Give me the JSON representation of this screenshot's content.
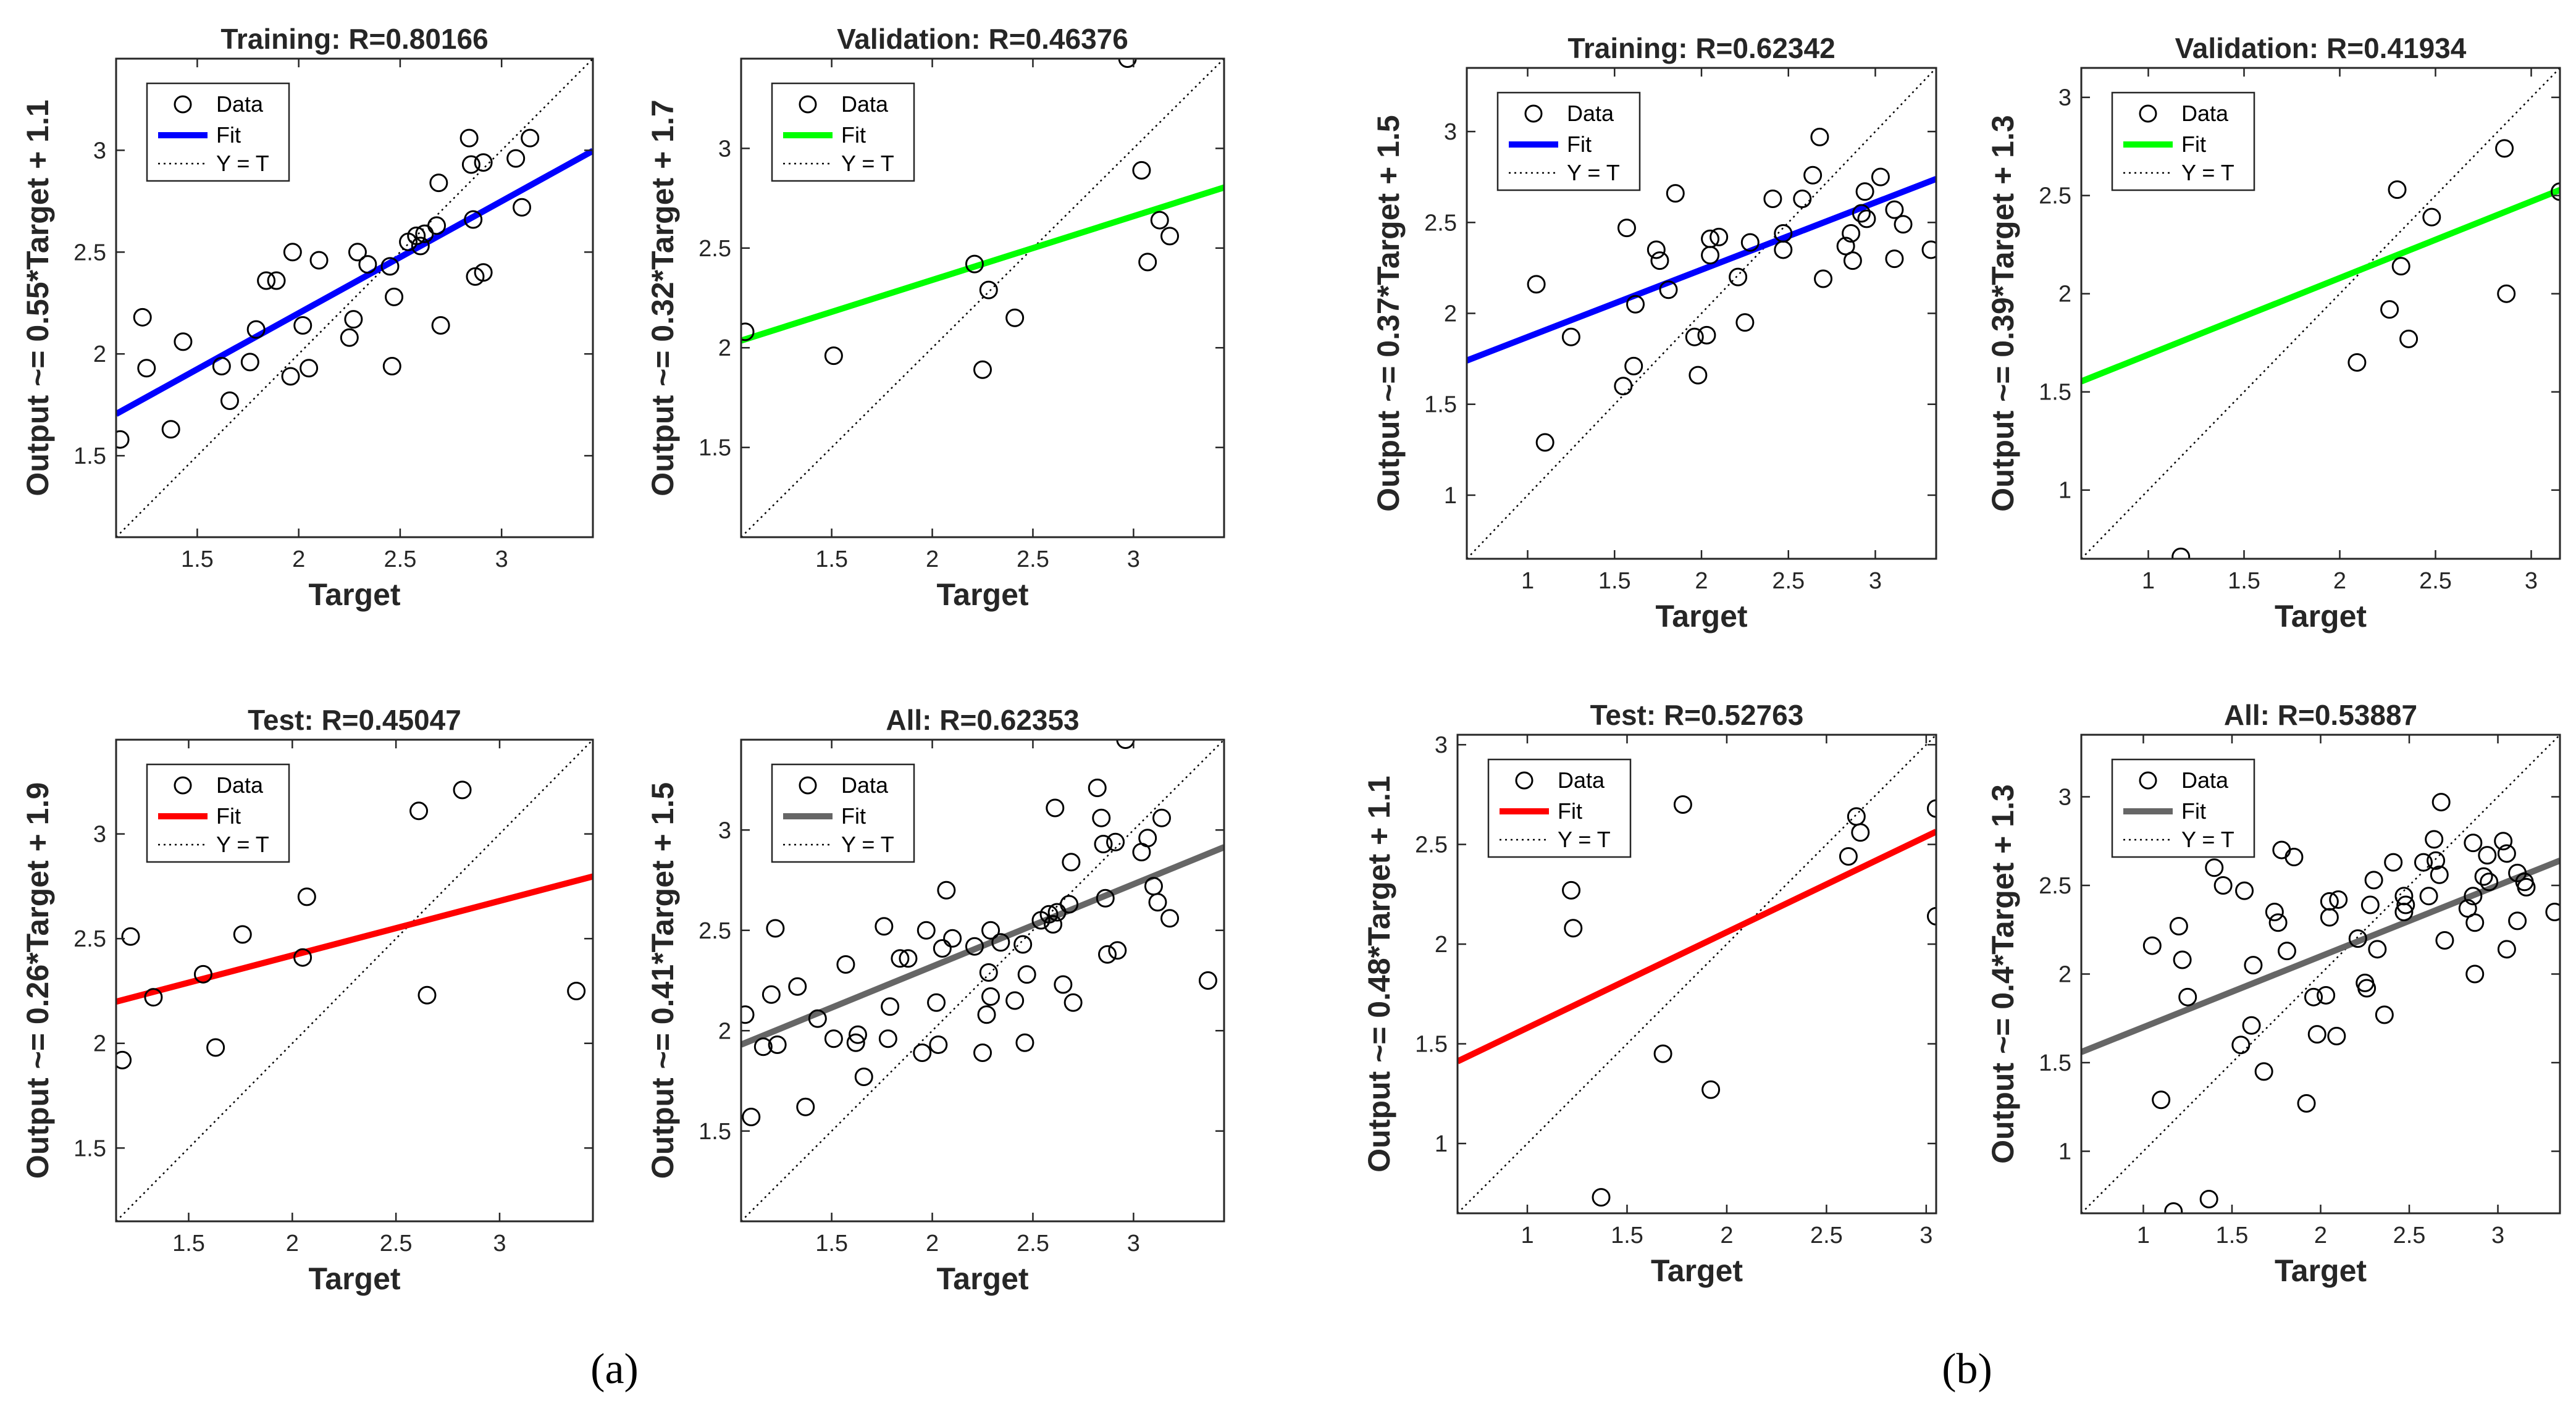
{
  "legend_labels": {
    "data": "Data",
    "fit": "Fit",
    "yt": "Y = T"
  },
  "colors": {
    "training": "#0000ff",
    "validation": "#00ff00",
    "test": "#ff0000",
    "all": "#666666"
  },
  "figure_labels": {
    "a": "(a)",
    "b": "(b)"
  },
  "chart_data": [
    {
      "id": "a-training",
      "type": "scatter",
      "group": "a",
      "title": "Training: R=0.80166",
      "xlabel": "Target",
      "ylabel": "Output ~= 0.55*Target + 1.1",
      "xlim": [
        1.1,
        3.45
      ],
      "ylim": [
        1.1,
        3.45
      ],
      "xticks": [
        1.5,
        2,
        2.5,
        3
      ],
      "yticks": [
        1.5,
        2,
        2.5,
        3
      ],
      "fit": {
        "slope": 0.55,
        "intercept": 1.1,
        "color": "training"
      },
      "points": [
        [
          1.12,
          1.58
        ],
        [
          1.23,
          2.18
        ],
        [
          1.25,
          1.93
        ],
        [
          1.37,
          1.63
        ],
        [
          1.43,
          2.06
        ],
        [
          1.62,
          1.94
        ],
        [
          1.66,
          1.77
        ],
        [
          1.76,
          1.96
        ],
        [
          1.79,
          2.12
        ],
        [
          1.84,
          2.36
        ],
        [
          1.89,
          2.36
        ],
        [
          1.96,
          1.89
        ],
        [
          1.97,
          2.5
        ],
        [
          2.02,
          2.14
        ],
        [
          2.05,
          1.93
        ],
        [
          2.1,
          2.46
        ],
        [
          2.25,
          2.08
        ],
        [
          2.27,
          2.17
        ],
        [
          2.29,
          2.5
        ],
        [
          2.34,
          2.44
        ],
        [
          2.45,
          2.43
        ],
        [
          2.46,
          1.94
        ],
        [
          2.47,
          2.28
        ],
        [
          2.54,
          2.55
        ],
        [
          2.58,
          2.58
        ],
        [
          2.6,
          2.53
        ],
        [
          2.62,
          2.59
        ],
        [
          2.68,
          2.63
        ],
        [
          2.69,
          2.84
        ],
        [
          2.7,
          2.14
        ],
        [
          2.84,
          3.06
        ],
        [
          2.85,
          2.93
        ],
        [
          2.86,
          2.66
        ],
        [
          2.87,
          2.38
        ],
        [
          2.91,
          2.94
        ],
        [
          2.91,
          2.4
        ],
        [
          3.07,
          2.96
        ],
        [
          3.1,
          2.72
        ],
        [
          3.14,
          3.06
        ]
      ]
    },
    {
      "id": "a-validation",
      "type": "scatter",
      "group": "a",
      "title": "Validation: R=0.46376",
      "xlabel": "Target",
      "ylabel": "Output ~= 0.32*Target + 1.7",
      "xlim": [
        1.05,
        3.45
      ],
      "ylim": [
        1.05,
        3.45
      ],
      "xticks": [
        1.5,
        2,
        2.5,
        3
      ],
      "yticks": [
        1.5,
        2,
        2.5,
        3
      ],
      "fit": {
        "slope": 0.32,
        "intercept": 1.7,
        "color": "validation"
      },
      "points": [
        [
          1.07,
          2.08
        ],
        [
          1.51,
          1.96
        ],
        [
          2.21,
          2.42
        ],
        [
          2.25,
          1.89
        ],
        [
          2.28,
          2.29
        ],
        [
          2.41,
          2.15
        ],
        [
          2.97,
          3.45
        ],
        [
          3.04,
          2.89
        ],
        [
          3.07,
          2.43
        ],
        [
          3.13,
          2.64
        ],
        [
          3.18,
          2.56
        ]
      ]
    },
    {
      "id": "a-test",
      "type": "scatter",
      "group": "a",
      "title": "Test: R=0.45047",
      "xlabel": "Target",
      "ylabel": "Output ~= 0.26*Target + 1.9",
      "xlim": [
        1.15,
        3.45
      ],
      "ylim": [
        1.15,
        3.45
      ],
      "xticks": [
        1.5,
        2,
        2.5,
        3
      ],
      "yticks": [
        1.5,
        2,
        2.5,
        3
      ],
      "fit": {
        "slope": 0.26,
        "intercept": 1.9,
        "color": "test"
      },
      "points": [
        [
          1.18,
          1.92
        ],
        [
          1.22,
          2.51
        ],
        [
          1.33,
          2.22
        ],
        [
          1.57,
          2.33
        ],
        [
          1.63,
          1.98
        ],
        [
          1.76,
          2.52
        ],
        [
          2.05,
          2.41
        ],
        [
          2.07,
          2.7
        ],
        [
          2.61,
          3.11
        ],
        [
          2.65,
          2.23
        ],
        [
          2.82,
          3.21
        ],
        [
          3.37,
          2.25
        ]
      ]
    },
    {
      "id": "a-all",
      "type": "scatter",
      "group": "a",
      "title": "All: R=0.62353",
      "xlabel": "Target",
      "ylabel": "Output ~= 0.41*Target + 1.5",
      "xlim": [
        1.05,
        3.45
      ],
      "ylim": [
        1.05,
        3.45
      ],
      "xticks": [
        1.5,
        2,
        2.5,
        3
      ],
      "yticks": [
        1.5,
        2,
        2.5,
        3
      ],
      "fit": {
        "slope": 0.41,
        "intercept": 1.5,
        "color": "all"
      },
      "points": [
        [
          1.07,
          2.08
        ],
        [
          1.1,
          1.57
        ],
        [
          1.16,
          1.92
        ],
        [
          1.2,
          2.18
        ],
        [
          1.22,
          2.51
        ],
        [
          1.23,
          1.93
        ],
        [
          1.33,
          2.22
        ],
        [
          1.37,
          1.62
        ],
        [
          1.43,
          2.06
        ],
        [
          1.51,
          1.96
        ],
        [
          1.57,
          2.33
        ],
        [
          1.62,
          1.94
        ],
        [
          1.63,
          1.98
        ],
        [
          1.66,
          1.77
        ],
        [
          1.76,
          2.52
        ],
        [
          1.78,
          1.96
        ],
        [
          1.79,
          2.12
        ],
        [
          1.84,
          2.36
        ],
        [
          1.88,
          2.36
        ],
        [
          1.95,
          1.89
        ],
        [
          1.97,
          2.5
        ],
        [
          2.02,
          2.14
        ],
        [
          2.03,
          1.93
        ],
        [
          2.05,
          2.41
        ],
        [
          2.07,
          2.7
        ],
        [
          2.1,
          2.46
        ],
        [
          2.21,
          2.42
        ],
        [
          2.25,
          1.89
        ],
        [
          2.27,
          2.08
        ],
        [
          2.28,
          2.29
        ],
        [
          2.29,
          2.17
        ],
        [
          2.29,
          2.5
        ],
        [
          2.34,
          2.44
        ],
        [
          2.41,
          2.15
        ],
        [
          2.45,
          2.43
        ],
        [
          2.46,
          1.94
        ],
        [
          2.47,
          2.28
        ],
        [
          2.54,
          2.55
        ],
        [
          2.58,
          2.58
        ],
        [
          2.6,
          2.53
        ],
        [
          2.61,
          3.11
        ],
        [
          2.62,
          2.59
        ],
        [
          2.65,
          2.23
        ],
        [
          2.68,
          2.63
        ],
        [
          2.69,
          2.84
        ],
        [
          2.7,
          2.14
        ],
        [
          2.82,
          3.21
        ],
        [
          2.84,
          3.06
        ],
        [
          2.85,
          2.93
        ],
        [
          2.86,
          2.66
        ],
        [
          2.87,
          2.38
        ],
        [
          2.91,
          2.94
        ],
        [
          2.92,
          2.4
        ],
        [
          2.96,
          3.45
        ],
        [
          3.04,
          2.89
        ],
        [
          3.07,
          2.96
        ],
        [
          3.1,
          2.72
        ],
        [
          3.12,
          2.64
        ],
        [
          3.14,
          3.06
        ],
        [
          3.18,
          2.56
        ],
        [
          3.37,
          2.25
        ]
      ]
    },
    {
      "id": "b-training",
      "type": "scatter",
      "group": "b",
      "title": "Training: R=0.62342",
      "xlabel": "Target",
      "ylabel": "Output ~= 0.37*Target + 1.5",
      "xlim": [
        0.65,
        3.35
      ],
      "ylim": [
        0.65,
        3.35
      ],
      "xticks": [
        1,
        1.5,
        2,
        2.5,
        3
      ],
      "yticks": [
        1,
        1.5,
        2,
        2.5,
        3
      ],
      "fit": {
        "slope": 0.37,
        "intercept": 1.5,
        "color": "training"
      },
      "points": [
        [
          1.05,
          2.16
        ],
        [
          1.1,
          1.29
        ],
        [
          1.25,
          1.87
        ],
        [
          1.55,
          1.6
        ],
        [
          1.57,
          2.47
        ],
        [
          1.61,
          1.71
        ],
        [
          1.62,
          2.05
        ],
        [
          1.74,
          2.35
        ],
        [
          1.76,
          2.29
        ],
        [
          1.81,
          2.13
        ],
        [
          1.85,
          2.66
        ],
        [
          1.96,
          1.87
        ],
        [
          1.98,
          1.66
        ],
        [
          2.03,
          1.88
        ],
        [
          2.05,
          2.32
        ],
        [
          2.05,
          2.41
        ],
        [
          2.1,
          2.42
        ],
        [
          2.21,
          2.2
        ],
        [
          2.25,
          1.95
        ],
        [
          2.28,
          2.39
        ],
        [
          2.41,
          2.63
        ],
        [
          2.47,
          2.44
        ],
        [
          2.47,
          2.35
        ],
        [
          2.58,
          2.63
        ],
        [
          2.64,
          2.76
        ],
        [
          2.68,
          2.97
        ],
        [
          2.7,
          2.19
        ],
        [
          2.83,
          2.37
        ],
        [
          2.86,
          2.44
        ],
        [
          2.87,
          2.29
        ],
        [
          2.92,
          2.55
        ],
        [
          2.94,
          2.67
        ],
        [
          2.95,
          2.52
        ],
        [
          3.03,
          2.75
        ],
        [
          3.11,
          2.57
        ],
        [
          3.11,
          2.3
        ],
        [
          3.16,
          2.49
        ],
        [
          3.32,
          2.35
        ]
      ]
    },
    {
      "id": "b-validation",
      "type": "scatter",
      "group": "b",
      "title": "Validation: R=0.41934",
      "xlabel": "Target",
      "ylabel": "Output ~= 0.39*Target + 1.3",
      "xlim": [
        0.65,
        3.15
      ],
      "ylim": [
        0.65,
        3.15
      ],
      "xticks": [
        1,
        1.5,
        2,
        2.5,
        3
      ],
      "yticks": [
        1,
        1.5,
        2,
        2.5,
        3
      ],
      "fit": {
        "slope": 0.39,
        "intercept": 1.3,
        "color": "validation"
      },
      "points": [
        [
          1.17,
          0.66
        ],
        [
          2.09,
          1.65
        ],
        [
          2.26,
          1.92
        ],
        [
          2.3,
          2.53
        ],
        [
          2.32,
          2.14
        ],
        [
          2.36,
          1.77
        ],
        [
          2.48,
          2.39
        ],
        [
          2.86,
          2.74
        ],
        [
          2.87,
          2.0
        ],
        [
          3.15,
          2.52
        ]
      ]
    },
    {
      "id": "b-test",
      "type": "scatter",
      "group": "b",
      "title": "Test: R=0.52763",
      "xlabel": "Target",
      "ylabel": "Output ~= 0.48*Target + 1.1",
      "xlim": [
        0.65,
        3.05
      ],
      "ylim": [
        0.65,
        3.05
      ],
      "xticks": [
        1,
        1.5,
        2,
        2.5,
        3
      ],
      "yticks": [
        1,
        1.5,
        2,
        2.5,
        3
      ],
      "fit": {
        "slope": 0.48,
        "intercept": 1.1,
        "color": "test"
      },
      "points": [
        [
          1.22,
          2.27
        ],
        [
          1.23,
          2.08
        ],
        [
          1.37,
          0.73
        ],
        [
          1.68,
          1.45
        ],
        [
          1.78,
          2.7
        ],
        [
          1.92,
          1.27
        ],
        [
          2.61,
          2.44
        ],
        [
          2.65,
          2.64
        ],
        [
          2.67,
          2.56
        ],
        [
          3.05,
          2.68
        ],
        [
          3.05,
          2.14
        ]
      ]
    },
    {
      "id": "b-all",
      "type": "scatter",
      "group": "b",
      "title": "All: R=0.53887",
      "xlabel": "Target",
      "ylabel": "Output ~= 0.4*Target + 1.3",
      "xlim": [
        0.65,
        3.35
      ],
      "ylim": [
        0.65,
        3.35
      ],
      "xticks": [
        1,
        1.5,
        2,
        2.5,
        3
      ],
      "yticks": [
        1,
        1.5,
        2,
        2.5,
        3
      ],
      "fit": {
        "slope": 0.4,
        "intercept": 1.3,
        "color": "all"
      },
      "points": [
        [
          1.05,
          2.16
        ],
        [
          1.1,
          1.29
        ],
        [
          1.17,
          0.66
        ],
        [
          1.2,
          2.27
        ],
        [
          1.22,
          2.08
        ],
        [
          1.25,
          1.87
        ],
        [
          1.37,
          0.73
        ],
        [
          1.4,
          2.6
        ],
        [
          1.45,
          2.5
        ],
        [
          1.55,
          1.6
        ],
        [
          1.57,
          2.47
        ],
        [
          1.61,
          1.71
        ],
        [
          1.62,
          2.05
        ],
        [
          1.68,
          1.45
        ],
        [
          1.74,
          2.35
        ],
        [
          1.76,
          2.29
        ],
        [
          1.78,
          2.7
        ],
        [
          1.81,
          2.13
        ],
        [
          1.85,
          2.66
        ],
        [
          1.92,
          1.27
        ],
        [
          1.96,
          1.87
        ],
        [
          1.98,
          1.66
        ],
        [
          2.03,
          1.88
        ],
        [
          2.05,
          2.32
        ],
        [
          2.05,
          2.41
        ],
        [
          2.09,
          1.65
        ],
        [
          2.1,
          2.42
        ],
        [
          2.21,
          2.2
        ],
        [
          2.25,
          1.95
        ],
        [
          2.26,
          1.92
        ],
        [
          2.28,
          2.39
        ],
        [
          2.3,
          2.53
        ],
        [
          2.32,
          2.14
        ],
        [
          2.36,
          1.77
        ],
        [
          2.41,
          2.63
        ],
        [
          2.47,
          2.44
        ],
        [
          2.47,
          2.35
        ],
        [
          2.48,
          2.39
        ],
        [
          2.58,
          2.63
        ],
        [
          2.61,
          2.44
        ],
        [
          2.64,
          2.76
        ],
        [
          2.65,
          2.64
        ],
        [
          2.67,
          2.56
        ],
        [
          2.68,
          2.97
        ],
        [
          2.7,
          2.19
        ],
        [
          2.83,
          2.37
        ],
        [
          2.86,
          2.74
        ],
        [
          2.86,
          2.44
        ],
        [
          2.87,
          2.0
        ],
        [
          2.87,
          2.29
        ],
        [
          2.92,
          2.55
        ],
        [
          2.94,
          2.67
        ],
        [
          2.95,
          2.52
        ],
        [
          3.03,
          2.75
        ],
        [
          3.05,
          2.68
        ],
        [
          3.05,
          2.14
        ],
        [
          3.11,
          2.57
        ],
        [
          3.11,
          2.3
        ],
        [
          3.15,
          2.52
        ],
        [
          3.16,
          2.49
        ],
        [
          3.32,
          2.35
        ]
      ]
    }
  ]
}
